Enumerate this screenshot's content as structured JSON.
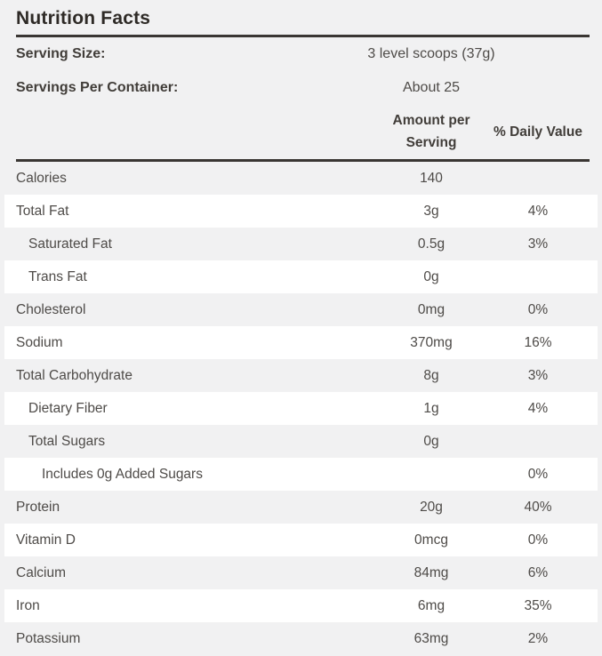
{
  "title": "Nutrition Facts",
  "serving_info": [
    {
      "label": "Serving Size:",
      "value": "3 level scoops (37g)"
    },
    {
      "label": "Servings Per Container:",
      "value": "About 25"
    }
  ],
  "columns": {
    "amount": "Amount per Serving",
    "daily_value": "% Daily Value"
  },
  "rows": [
    {
      "label": "Calories",
      "amount": "140",
      "dv": "",
      "indent": 0
    },
    {
      "label": "Total Fat",
      "amount": "3g",
      "dv": "4%",
      "indent": 0
    },
    {
      "label": "Saturated Fat",
      "amount": "0.5g",
      "dv": "3%",
      "indent": 1
    },
    {
      "label": "Trans Fat",
      "amount": "0g",
      "dv": "",
      "indent": 1
    },
    {
      "label": "Cholesterol",
      "amount": "0mg",
      "dv": "0%",
      "indent": 0
    },
    {
      "label": "Sodium",
      "amount": "370mg",
      "dv": "16%",
      "indent": 0
    },
    {
      "label": "Total Carbohydrate",
      "amount": "8g",
      "dv": "3%",
      "indent": 0
    },
    {
      "label": "Dietary Fiber",
      "amount": "1g",
      "dv": "4%",
      "indent": 1
    },
    {
      "label": "Total Sugars",
      "amount": "0g",
      "dv": "",
      "indent": 1
    },
    {
      "label": "Includes 0g Added Sugars",
      "amount": "",
      "dv": "0%",
      "indent": 2
    },
    {
      "label": "Protein",
      "amount": "20g",
      "dv": "40%",
      "indent": 0
    },
    {
      "label": "Vitamin D",
      "amount": "0mcg",
      "dv": "0%",
      "indent": 0
    },
    {
      "label": "Calcium",
      "amount": "84mg",
      "dv": "6%",
      "indent": 0
    },
    {
      "label": "Iron",
      "amount": "6mg",
      "dv": "35%",
      "indent": 0
    },
    {
      "label": "Potassium",
      "amount": "63mg",
      "dv": "2%",
      "indent": 0
    }
  ],
  "colors": {
    "page_background": "#f1f1f2",
    "white_row": "#ffffff",
    "rule": "#3a3633",
    "title_text": "#2e2a26",
    "body_text": "#4e4b48"
  }
}
